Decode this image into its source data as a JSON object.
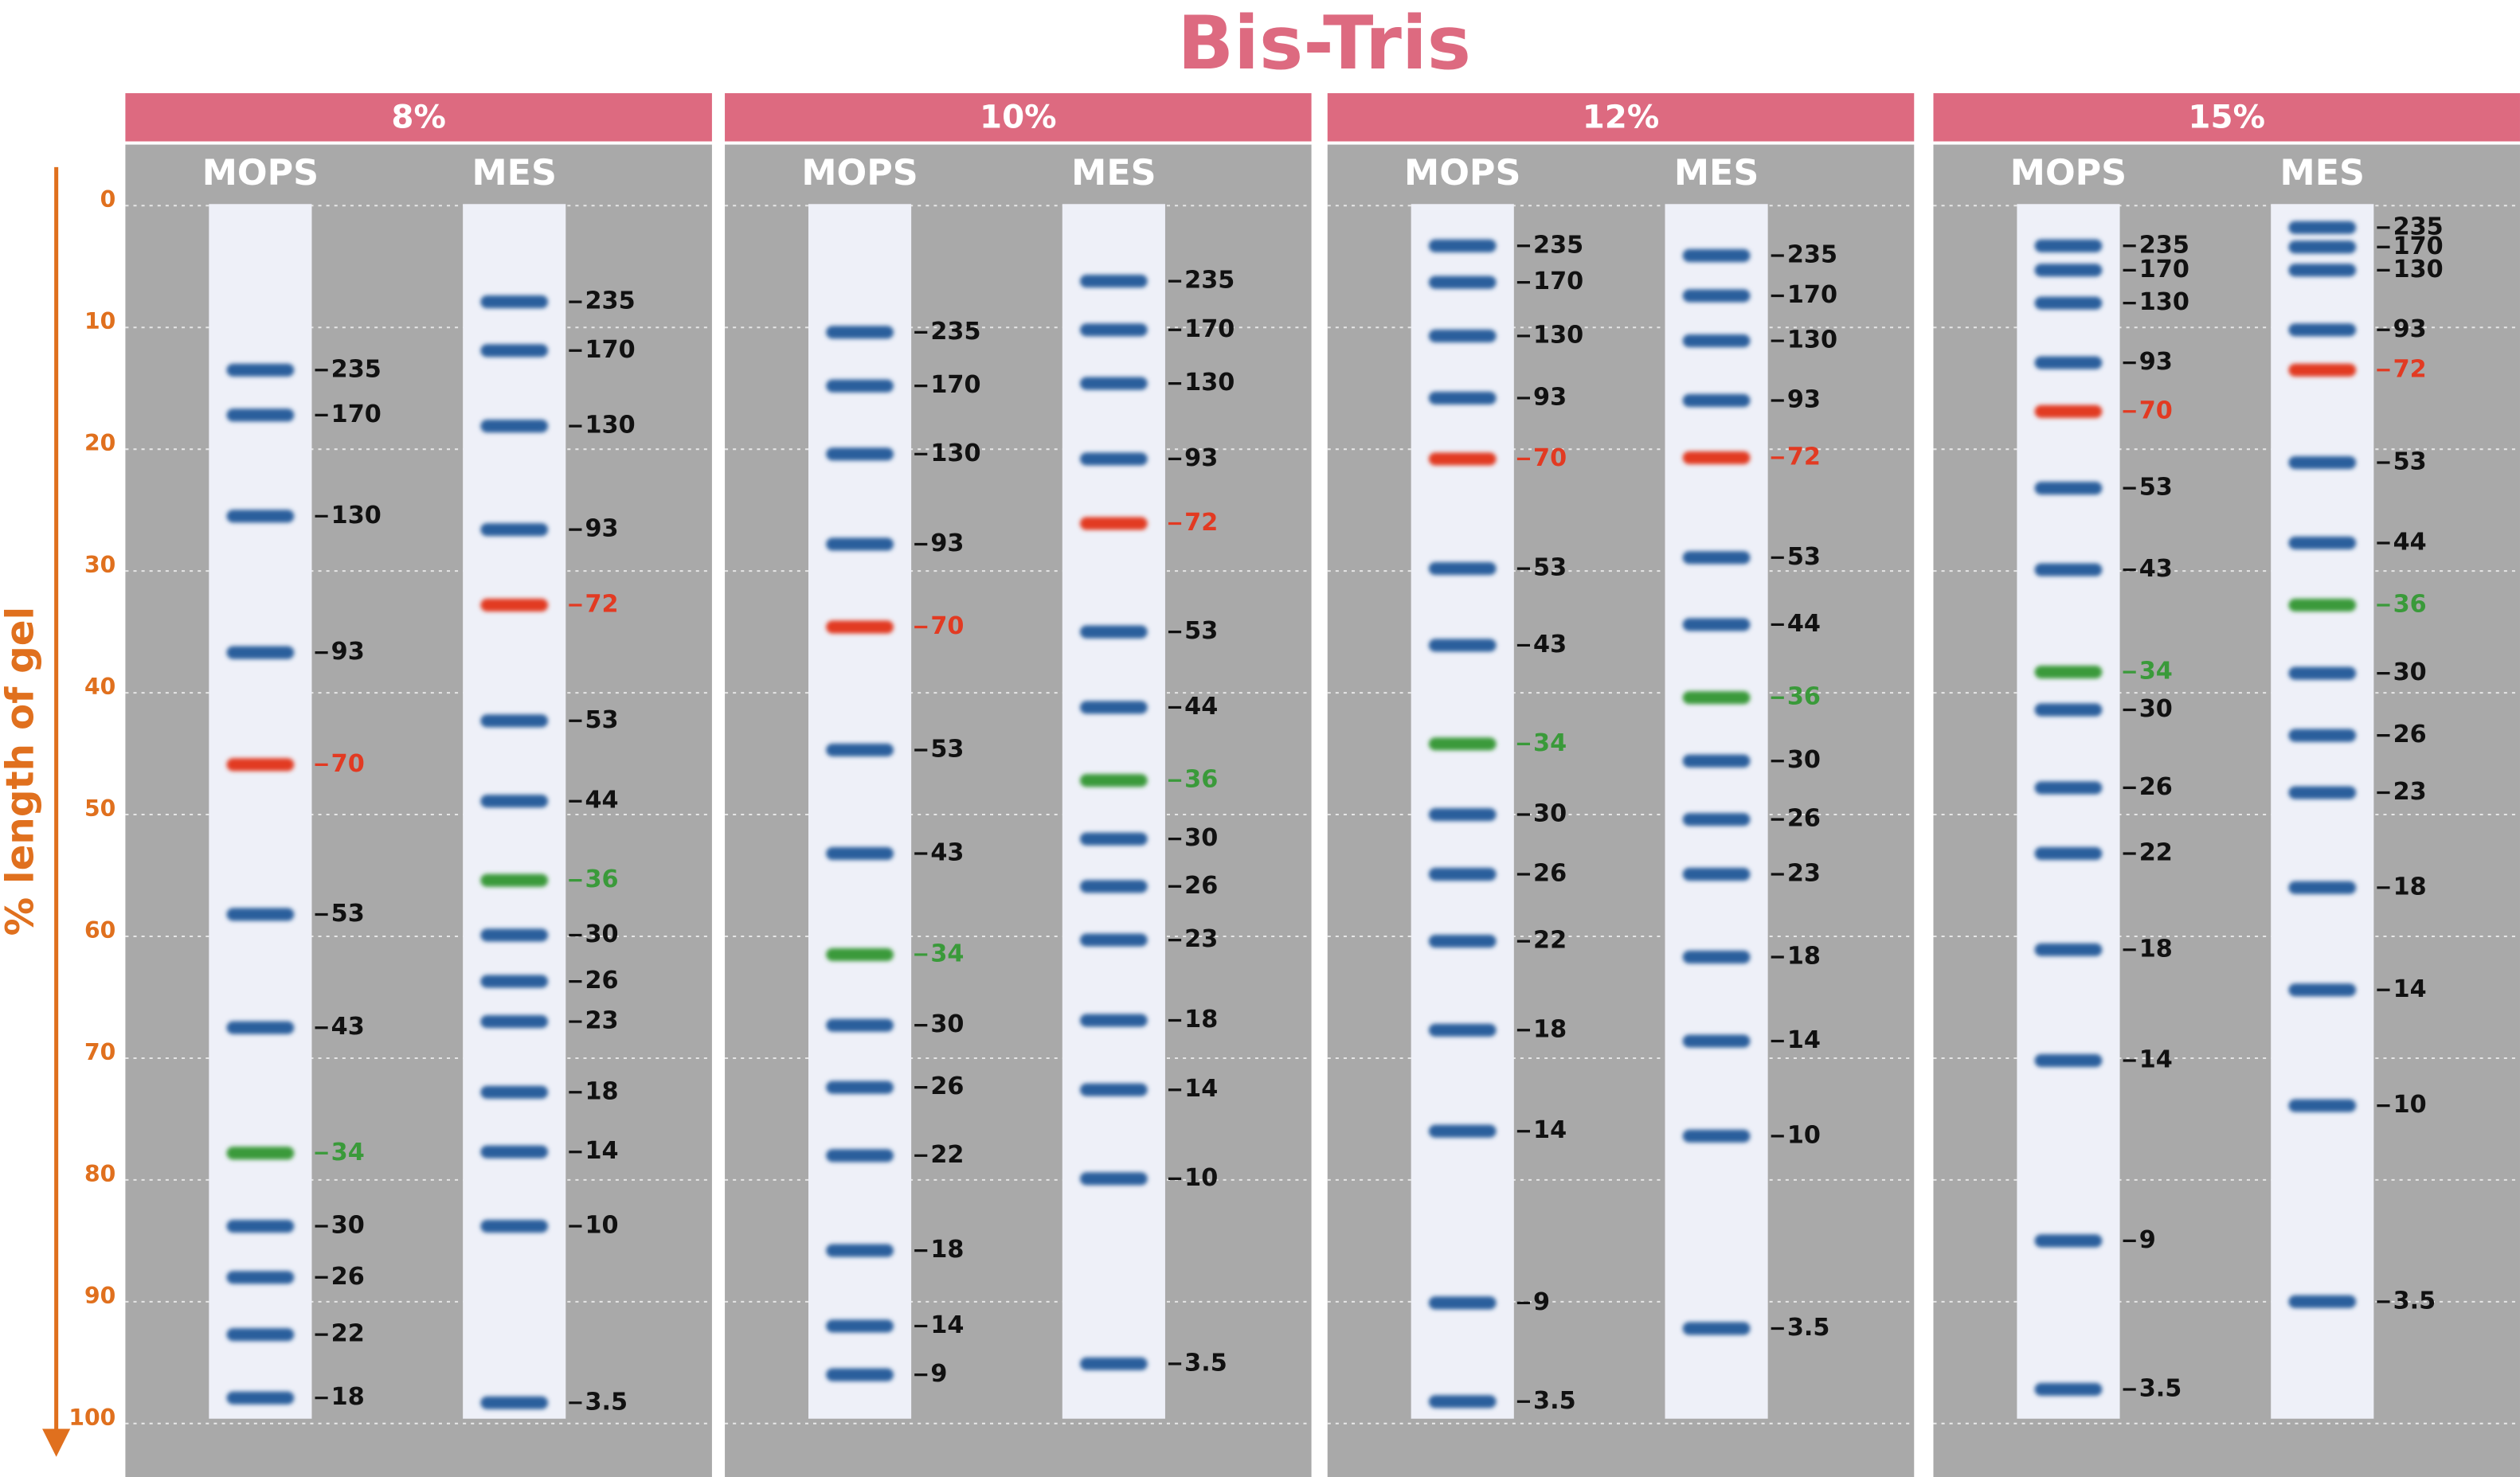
{
  "chart_data": {
    "type": "ladder",
    "title": "Bis-Tris",
    "y_label": "% length of gel",
    "ylim": [
      0,
      100
    ],
    "yticks": [
      0,
      10,
      20,
      30,
      40,
      50,
      60,
      70,
      80,
      90,
      100
    ],
    "grid": true,
    "band_color": "#2b5f9c",
    "label_color": "#111111",
    "header_color": "#dd6a80",
    "panel_color": "#a9a9a9",
    "lane_color": "#eef0f8",
    "axis_color": "#e0701e",
    "panels": [
      {
        "name": "8%",
        "lanes": [
          {
            "name": "MOPS",
            "bands": [
              {
                "label": "235",
                "pos": 13.5
              },
              {
                "label": "170",
                "pos": 17.2
              },
              {
                "label": "130",
                "pos": 25.5
              },
              {
                "label": "93",
                "pos": 36.7
              },
              {
                "label": "70",
                "pos": 45.9,
                "color": "#e23a22"
              },
              {
                "label": "53",
                "pos": 58.2
              },
              {
                "label": "43",
                "pos": 67.5
              },
              {
                "label": "34",
                "pos": 77.8,
                "color": "#3a9a3a"
              },
              {
                "label": "30",
                "pos": 83.8
              },
              {
                "label": "26",
                "pos": 88.0
              },
              {
                "label": "22",
                "pos": 92.7
              },
              {
                "label": "18",
                "pos": 97.9
              }
            ]
          },
          {
            "name": "MES",
            "bands": [
              {
                "label": "235",
                "pos": 7.9
              },
              {
                "label": "170",
                "pos": 11.9
              },
              {
                "label": "130",
                "pos": 18.1
              },
              {
                "label": "93",
                "pos": 26.6
              },
              {
                "label": "72",
                "pos": 32.8,
                "color": "#e23a22"
              },
              {
                "label": "53",
                "pos": 42.3
              },
              {
                "label": "44",
                "pos": 48.9
              },
              {
                "label": "36",
                "pos": 55.4,
                "color": "#3a9a3a"
              },
              {
                "label": "30",
                "pos": 59.9
              },
              {
                "label": "26",
                "pos": 63.7
              },
              {
                "label": "23",
                "pos": 67.0
              },
              {
                "label": "18",
                "pos": 72.8
              },
              {
                "label": "14",
                "pos": 77.7
              },
              {
                "label": "10",
                "pos": 83.8
              },
              {
                "label": "3.5",
                "pos": 98.3
              }
            ]
          }
        ]
      },
      {
        "name": "10%",
        "lanes": [
          {
            "name": "MOPS",
            "bands": [
              {
                "label": "235",
                "pos": 10.4
              },
              {
                "label": "170",
                "pos": 14.8
              },
              {
                "label": "130",
                "pos": 20.4
              },
              {
                "label": "93",
                "pos": 27.8
              },
              {
                "label": "70",
                "pos": 34.6,
                "color": "#e23a22"
              },
              {
                "label": "53",
                "pos": 44.7
              },
              {
                "label": "43",
                "pos": 53.2
              },
              {
                "label": "34",
                "pos": 61.5,
                "color": "#3a9a3a"
              },
              {
                "label": "30",
                "pos": 67.3
              },
              {
                "label": "26",
                "pos": 72.4
              },
              {
                "label": "22",
                "pos": 78.0
              },
              {
                "label": "18",
                "pos": 85.8
              },
              {
                "label": "14",
                "pos": 92.0
              },
              {
                "label": "9",
                "pos": 96.0
              }
            ]
          },
          {
            "name": "MES",
            "bands": [
              {
                "label": "235",
                "pos": 6.2
              },
              {
                "label": "170",
                "pos": 10.2
              },
              {
                "label": "130",
                "pos": 14.6
              },
              {
                "label": "93",
                "pos": 20.8
              },
              {
                "label": "72",
                "pos": 26.1,
                "color": "#e23a22"
              },
              {
                "label": "53",
                "pos": 35.0
              },
              {
                "label": "44",
                "pos": 41.2
              },
              {
                "label": "36",
                "pos": 47.2,
                "color": "#3a9a3a"
              },
              {
                "label": "30",
                "pos": 52.0
              },
              {
                "label": "26",
                "pos": 55.9
              },
              {
                "label": "23",
                "pos": 60.3
              },
              {
                "label": "18",
                "pos": 66.9
              },
              {
                "label": "14",
                "pos": 72.6
              },
              {
                "label": "10",
                "pos": 79.9
              },
              {
                "label": "3.5",
                "pos": 95.1
              }
            ]
          }
        ]
      },
      {
        "name": "12%",
        "lanes": [
          {
            "name": "MOPS",
            "bands": [
              {
                "label": "235",
                "pos": 3.3
              },
              {
                "label": "170",
                "pos": 6.3
              },
              {
                "label": "130",
                "pos": 10.7
              },
              {
                "label": "93",
                "pos": 15.8
              },
              {
                "label": "70",
                "pos": 20.8,
                "color": "#e23a22"
              },
              {
                "label": "53",
                "pos": 29.8
              },
              {
                "label": "43",
                "pos": 36.1
              },
              {
                "label": "34",
                "pos": 44.2,
                "color": "#3a9a3a"
              },
              {
                "label": "30",
                "pos": 50.0
              },
              {
                "label": "26",
                "pos": 54.9
              },
              {
                "label": "22",
                "pos": 60.4
              },
              {
                "label": "18",
                "pos": 67.7
              },
              {
                "label": "14",
                "pos": 76.0
              },
              {
                "label": "9",
                "pos": 90.1
              },
              {
                "label": "3.5",
                "pos": 98.2
              }
            ]
          },
          {
            "name": "MES",
            "bands": [
              {
                "label": "235",
                "pos": 4.1
              },
              {
                "label": "170",
                "pos": 7.4
              },
              {
                "label": "130",
                "pos": 11.1
              },
              {
                "label": "93",
                "pos": 16.0
              },
              {
                "label": "72",
                "pos": 20.7,
                "color": "#e23a22"
              },
              {
                "label": "53",
                "pos": 28.9
              },
              {
                "label": "44",
                "pos": 34.4
              },
              {
                "label": "36",
                "pos": 40.4,
                "color": "#3a9a3a"
              },
              {
                "label": "30",
                "pos": 45.6
              },
              {
                "label": "26",
                "pos": 50.4
              },
              {
                "label": "23",
                "pos": 54.9
              },
              {
                "label": "18",
                "pos": 61.7
              },
              {
                "label": "14",
                "pos": 68.6
              },
              {
                "label": "10",
                "pos": 76.4
              },
              {
                "label": "3.5",
                "pos": 92.2
              }
            ]
          }
        ]
      },
      {
        "name": "15%",
        "lanes": [
          {
            "name": "MOPS",
            "bands": [
              {
                "label": "235",
                "pos": 3.3
              },
              {
                "label": "170",
                "pos": 5.3
              },
              {
                "label": "130",
                "pos": 8.0
              },
              {
                "label": "93",
                "pos": 12.9
              },
              {
                "label": "70",
                "pos": 16.9,
                "color": "#e23a22"
              },
              {
                "label": "53",
                "pos": 23.2
              },
              {
                "label": "43",
                "pos": 29.9
              },
              {
                "label": "34",
                "pos": 38.3,
                "color": "#3a9a3a"
              },
              {
                "label": "30",
                "pos": 41.4
              },
              {
                "label": "26",
                "pos": 47.8
              },
              {
                "label": "22",
                "pos": 53.2
              },
              {
                "label": "18",
                "pos": 61.1
              },
              {
                "label": "14",
                "pos": 70.2
              },
              {
                "label": "9",
                "pos": 85.0
              },
              {
                "label": "3.5",
                "pos": 97.2
              }
            ]
          },
          {
            "name": "MES",
            "bands": [
              {
                "label": "235",
                "pos": 1.8
              },
              {
                "label": "170",
                "pos": 3.4
              },
              {
                "label": "130",
                "pos": 5.3
              },
              {
                "label": "93",
                "pos": 10.2
              },
              {
                "label": "72",
                "pos": 13.5,
                "color": "#e23a22"
              },
              {
                "label": "53",
                "pos": 21.1
              },
              {
                "label": "44",
                "pos": 27.7
              },
              {
                "label": "36",
                "pos": 32.8,
                "color": "#3a9a3a"
              },
              {
                "label": "30",
                "pos": 38.4
              },
              {
                "label": "26",
                "pos": 43.5
              },
              {
                "label": "23",
                "pos": 48.2
              },
              {
                "label": "18",
                "pos": 56.0
              },
              {
                "label": "14",
                "pos": 64.4
              },
              {
                "label": "10",
                "pos": 73.9
              },
              {
                "label": "3.5",
                "pos": 90.0
              }
            ]
          }
        ]
      }
    ]
  }
}
